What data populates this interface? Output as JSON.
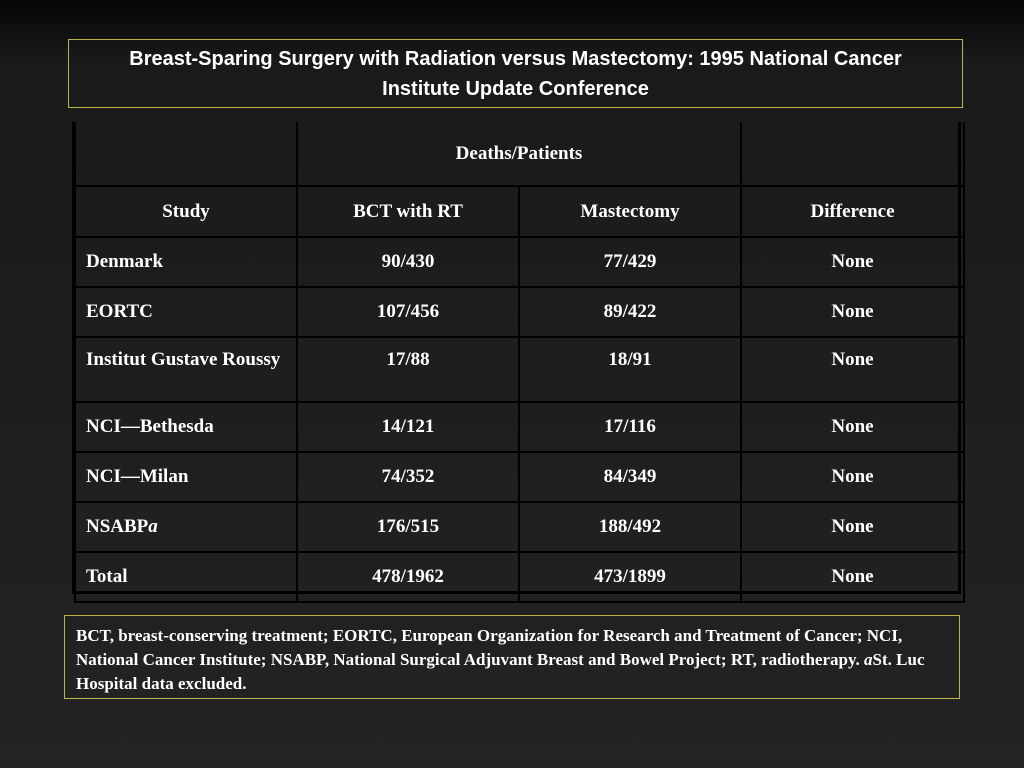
{
  "title": "Breast-Sparing Surgery with Radiation versus Mastectomy: 1995 National Cancer Institute Update Conference",
  "table": {
    "group_header": "Deaths/Patients",
    "columns": [
      "Study",
      "BCT with RT",
      "Mastectomy",
      "Difference"
    ],
    "rows": [
      {
        "study": "Denmark",
        "bct": "90/430",
        "mastectomy": "77/429",
        "difference": "None"
      },
      {
        "study": "EORTC",
        "bct": "107/456",
        "mastectomy": "89/422",
        "difference": "None"
      },
      {
        "study": "Institut Gustave Roussy",
        "bct": "17/88",
        "mastectomy": "18/91",
        "difference": "None"
      },
      {
        "study": "NCI—Bethesda",
        "bct": "14/121",
        "mastectomy": "17/116",
        "difference": "None"
      },
      {
        "study": "NCI—Milan",
        "bct": "74/352",
        "mastectomy": "84/349",
        "difference": "None"
      },
      {
        "study": "NSABP",
        "study_suffix": "a",
        "bct": "176/515",
        "mastectomy": "188/492",
        "difference": "None"
      },
      {
        "study": "Total",
        "bct": "478/1962",
        "mastectomy": "473/1899",
        "difference": "None"
      }
    ]
  },
  "footnote": {
    "text": "BCT, breast-conserving treatment; EORTC, European Organization for Research and Treatment of Cancer; NCI, National Cancer Institute; NSABP, National Surgical Adjuvant Breast and Bowel Project; RT, radiotherapy.",
    "marker": "a",
    "marker_text": "St. Luc Hospital data excluded."
  },
  "colors": {
    "box_border": "#b8b44a",
    "table_lines": "#000000",
    "text": "#ffffff"
  }
}
